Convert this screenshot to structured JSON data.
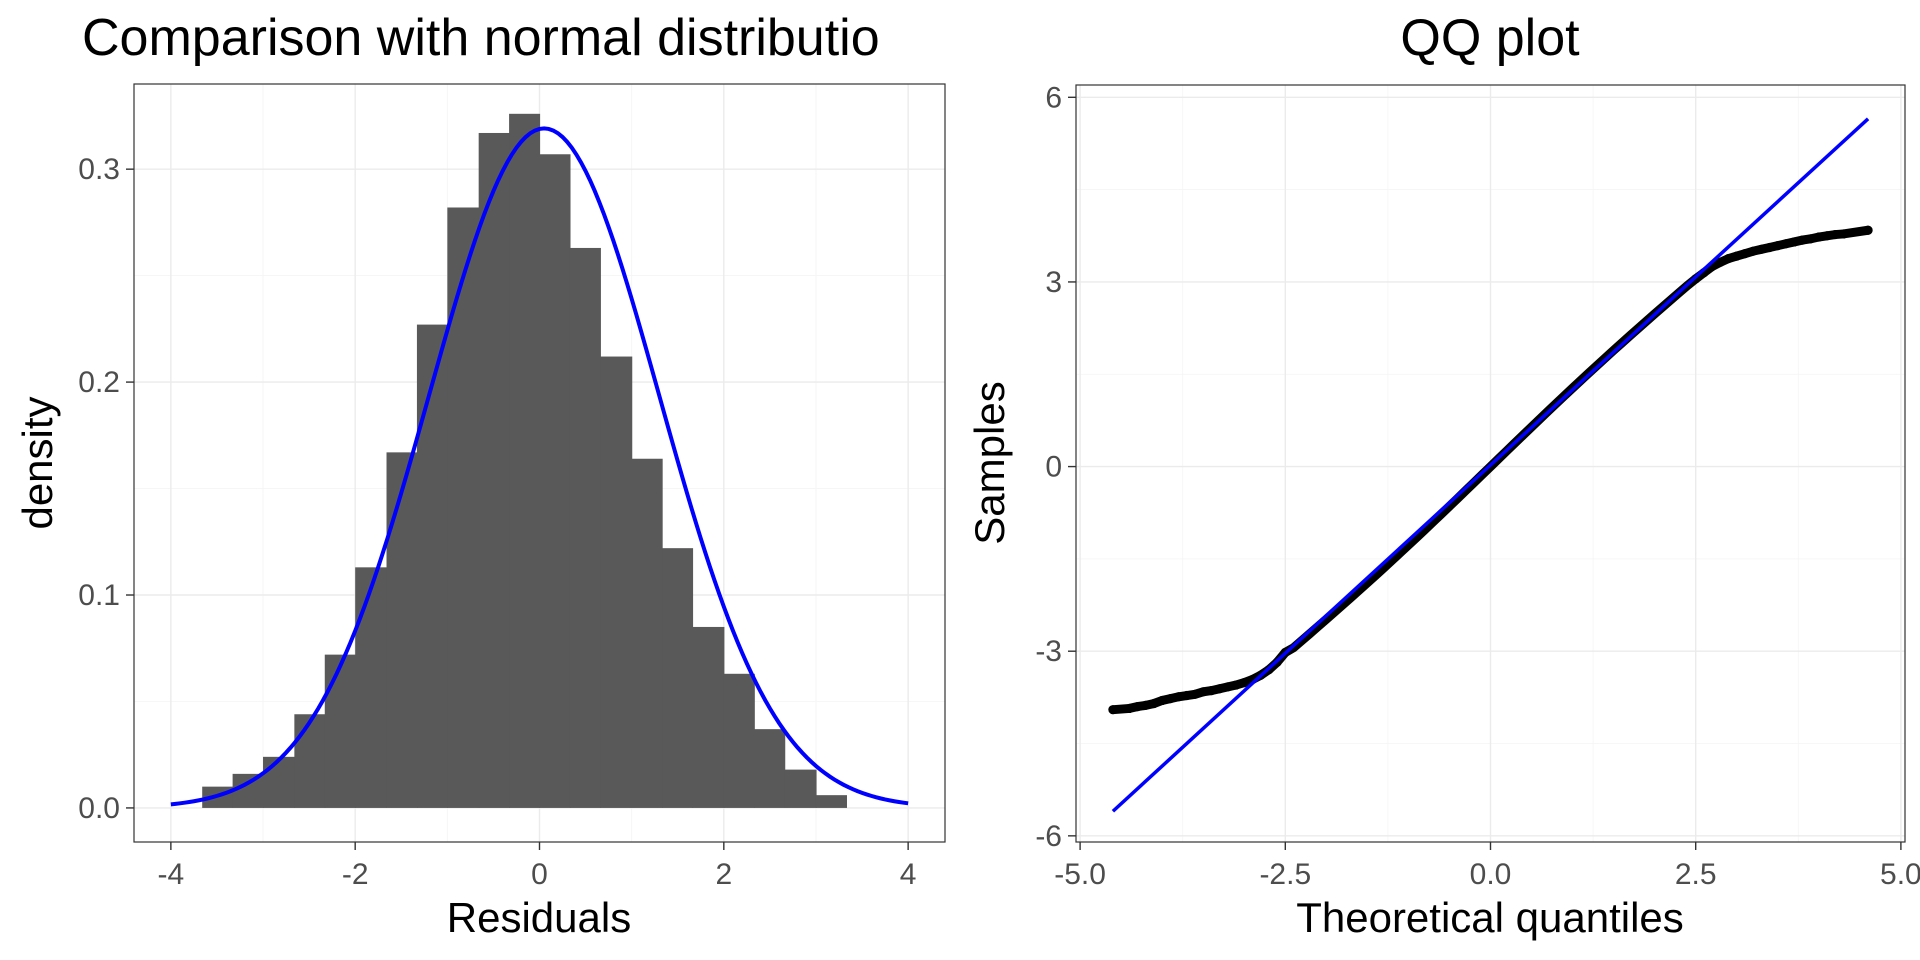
{
  "chart_data": [
    {
      "type": "bar",
      "subtype": "histogram_with_density",
      "title": "Comparison with normal distributio",
      "xlabel": "Residuals",
      "ylabel": "density",
      "xlim": [
        -4.4,
        4.4
      ],
      "ylim": [
        -0.016,
        0.34
      ],
      "xticks": [
        -4,
        -2,
        0,
        2,
        4
      ],
      "xtick_labels": [
        "-4",
        "-2",
        "0",
        "2",
        "4"
      ],
      "yticks": [
        0.0,
        0.1,
        0.2,
        0.3
      ],
      "ytick_labels": [
        "0.0",
        "0.1",
        "0.2",
        "0.3"
      ],
      "grid": true,
      "bins": [
        {
          "left": -3.66,
          "right": -3.33,
          "density": 0.01
        },
        {
          "left": -3.33,
          "right": -3.0,
          "density": 0.016
        },
        {
          "left": -3.0,
          "right": -2.66,
          "density": 0.024
        },
        {
          "left": -2.66,
          "right": -2.33,
          "density": 0.044
        },
        {
          "left": -2.33,
          "right": -2.0,
          "density": 0.072
        },
        {
          "left": -2.0,
          "right": -1.66,
          "density": 0.113
        },
        {
          "left": -1.66,
          "right": -1.33,
          "density": 0.167
        },
        {
          "left": -1.33,
          "right": -1.0,
          "density": 0.227
        },
        {
          "left": -1.0,
          "right": -0.66,
          "density": 0.282
        },
        {
          "left": -0.66,
          "right": -0.33,
          "density": 0.317
        },
        {
          "left": -0.33,
          "right": 0.0,
          "density": 0.326
        },
        {
          "left": 0.0,
          "right": 0.33,
          "density": 0.307
        },
        {
          "left": 0.33,
          "right": 0.66,
          "density": 0.263
        },
        {
          "left": 0.66,
          "right": 1.0,
          "density": 0.212
        },
        {
          "left": 1.0,
          "right": 1.33,
          "density": 0.164
        },
        {
          "left": 1.33,
          "right": 1.66,
          "density": 0.122
        },
        {
          "left": 1.66,
          "right": 2.0,
          "density": 0.085
        },
        {
          "left": 2.0,
          "right": 2.33,
          "density": 0.063
        },
        {
          "left": 2.33,
          "right": 2.66,
          "density": 0.037
        },
        {
          "left": 2.66,
          "right": 3.0,
          "density": 0.018
        },
        {
          "left": 3.0,
          "right": 3.33,
          "density": 0.006
        }
      ],
      "density_curve": {
        "mean": 0.05,
        "sd": 1.25,
        "x_range": [
          -4,
          4
        ],
        "color": "#0000ff"
      },
      "bar_color": "#595959"
    },
    {
      "type": "scatter",
      "subtype": "qq_plot",
      "title": "QQ plot",
      "xlabel": "Theoretical quantiles",
      "ylabel": "Samples",
      "xlim": [
        -5.05,
        5.05
      ],
      "ylim": [
        -6.1,
        6.2
      ],
      "xticks": [
        -5.0,
        -2.5,
        0.0,
        2.5,
        5.0
      ],
      "xtick_labels": [
        "-5.0",
        "-2.5",
        "0.0",
        "2.5",
        "5.0"
      ],
      "yticks": [
        -6,
        -3,
        0,
        3,
        6
      ],
      "ytick_labels": [
        "-6",
        "-3",
        "0",
        "3",
        "6"
      ],
      "grid": true,
      "reference_line": {
        "x": [
          -4.6,
          4.6
        ],
        "y": [
          -5.6,
          5.65
        ],
        "color": "#0000ff"
      },
      "lower_tail": [
        {
          "x": -4.6,
          "y": -3.95
        },
        {
          "x": -4.4,
          "y": -3.93
        },
        {
          "x": -4.3,
          "y": -3.9
        },
        {
          "x": -4.2,
          "y": -3.88
        },
        {
          "x": -4.1,
          "y": -3.85
        },
        {
          "x": -4.0,
          "y": -3.8
        },
        {
          "x": -3.9,
          "y": -3.77
        },
        {
          "x": -3.8,
          "y": -3.74
        },
        {
          "x": -3.7,
          "y": -3.72
        },
        {
          "x": -3.6,
          "y": -3.7
        },
        {
          "x": -3.5,
          "y": -3.66
        },
        {
          "x": -3.4,
          "y": -3.64
        },
        {
          "x": -3.3,
          "y": -3.61
        },
        {
          "x": -3.2,
          "y": -3.58
        },
        {
          "x": -3.1,
          "y": -3.55
        },
        {
          "x": -3.0,
          "y": -3.51
        },
        {
          "x": -2.9,
          "y": -3.46
        },
        {
          "x": -2.8,
          "y": -3.39
        },
        {
          "x": -2.7,
          "y": -3.3
        },
        {
          "x": -2.6,
          "y": -3.18
        },
        {
          "x": -2.5,
          "y": -3.02
        }
      ],
      "upper_tail": [
        {
          "x": 2.5,
          "y": 3.05
        },
        {
          "x": 2.6,
          "y": 3.15
        },
        {
          "x": 2.7,
          "y": 3.25
        },
        {
          "x": 2.8,
          "y": 3.32
        },
        {
          "x": 2.9,
          "y": 3.38
        },
        {
          "x": 3.0,
          "y": 3.42
        },
        {
          "x": 3.1,
          "y": 3.46
        },
        {
          "x": 3.2,
          "y": 3.5
        },
        {
          "x": 3.3,
          "y": 3.53
        },
        {
          "x": 3.4,
          "y": 3.56
        },
        {
          "x": 3.5,
          "y": 3.59
        },
        {
          "x": 3.6,
          "y": 3.62
        },
        {
          "x": 3.7,
          "y": 3.65
        },
        {
          "x": 3.8,
          "y": 3.68
        },
        {
          "x": 3.9,
          "y": 3.7
        },
        {
          "x": 4.0,
          "y": 3.73
        },
        {
          "x": 4.1,
          "y": 3.75
        },
        {
          "x": 4.2,
          "y": 3.77
        },
        {
          "x": 4.3,
          "y": 3.78
        },
        {
          "x": 4.6,
          "y": 3.84
        }
      ],
      "central_band": {
        "x_range": [
          -2.5,
          2.5
        ],
        "slope": 1.22
      },
      "point_color": "#000000",
      "line_color": "#0000ff"
    }
  ]
}
